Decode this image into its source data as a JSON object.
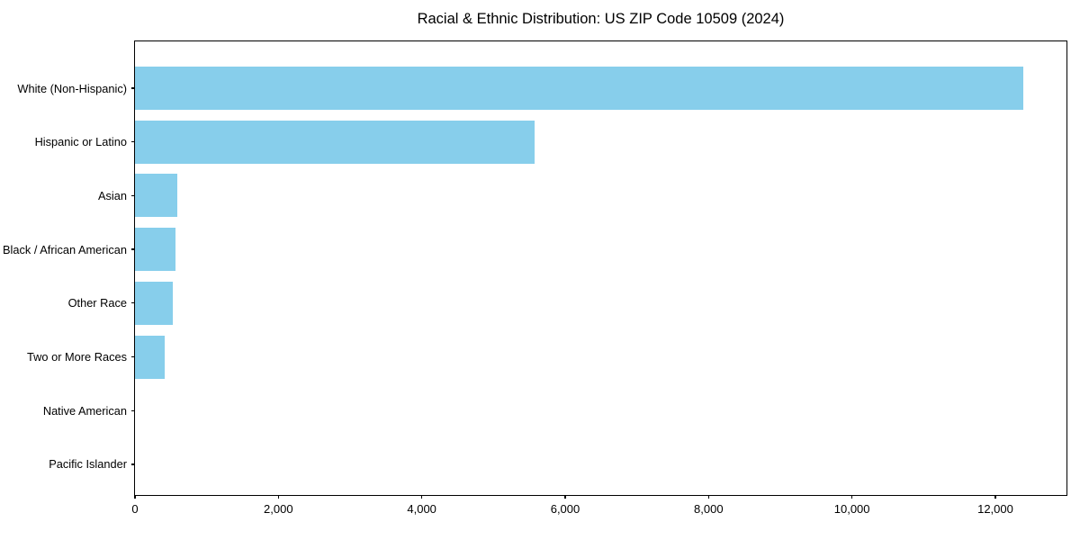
{
  "chart_data": {
    "type": "bar",
    "orientation": "horizontal",
    "title": "Racial & Ethnic Distribution: US ZIP Code 10509 (2024)",
    "categories": [
      "White (Non-Hispanic)",
      "Hispanic or Latino",
      "Asian",
      "Black / African American",
      "Other Race",
      "Two or More Races",
      "Native American",
      "Pacific Islander"
    ],
    "values": [
      12390,
      5573,
      590,
      565,
      523,
      414,
      0,
      0
    ],
    "xlabel": "",
    "ylabel": "",
    "xlim": [
      0,
      13017
    ],
    "xticks": [
      0,
      2000,
      4000,
      6000,
      8000,
      10000,
      12000
    ],
    "xtick_labels": [
      "0",
      "2,000",
      "4,000",
      "6,000",
      "8,000",
      "10,000",
      "12,000"
    ],
    "bar_color": "#87CEEB",
    "text_color": "#000000",
    "background_color": "#FFFFFF",
    "grid": false,
    "legend": null
  }
}
